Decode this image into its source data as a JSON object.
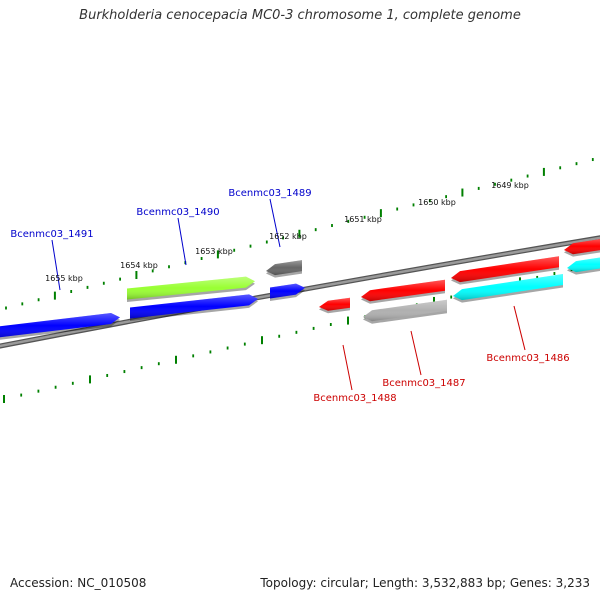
{
  "title": "Burkholderia cenocepacia MC0-3 chromosome 1, complete genome",
  "footer": {
    "accession": "Accession: NC_010508",
    "summary": "Topology: circular; Length: 3,532,883 bp; Genes: 3,233"
  },
  "scale_ticks": [
    "1649 kbp",
    "1650 kbp",
    "1651 kbp",
    "1652 kbp",
    "1653 kbp",
    "1654 kbp",
    "1655 kbp"
  ],
  "genes": [
    {
      "name": "Bcenmc03_1486",
      "strand": "minus",
      "color": "#ff0000"
    },
    {
      "name": "Bcenmc03_1487",
      "strand": "minus",
      "color": "#a0a0a0"
    },
    {
      "name": "Bcenmc03_1488",
      "strand": "minus",
      "color": "#ff0000"
    },
    {
      "name": "Bcenmc03_1489",
      "strand": "plus",
      "color": "#0000ff"
    },
    {
      "name": "Bcenmc03_1490",
      "strand": "plus",
      "color": "#99ff33"
    },
    {
      "name": "Bcenmc03_1491",
      "strand": "plus",
      "color": "#0000ff"
    }
  ],
  "colors": {
    "backbone": "#777777",
    "tick": "#008000",
    "plus_label": "#0000cc",
    "minus_label": "#cc0000",
    "blue": "#0000ff",
    "red": "#ff0000",
    "cyan": "#00ffff",
    "green": "#99ff33",
    "grey": "#aaaaaa",
    "darkgrey": "#666666"
  }
}
